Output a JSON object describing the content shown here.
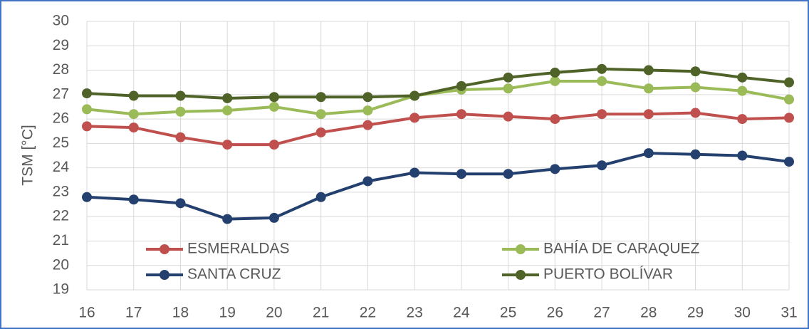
{
  "chart_data": {
    "type": "line",
    "ylabel": "TSM  [°C]",
    "x": [
      16,
      17,
      18,
      19,
      20,
      21,
      22,
      23,
      24,
      25,
      26,
      27,
      28,
      29,
      30,
      31
    ],
    "xlim": [
      16,
      31
    ],
    "xticks": [
      16,
      17,
      18,
      19,
      20,
      21,
      22,
      23,
      24,
      25,
      26,
      27,
      28,
      29,
      30,
      31
    ],
    "ylim": [
      19,
      30
    ],
    "yticks": [
      19,
      20,
      21,
      22,
      23,
      24,
      25,
      26,
      27,
      28,
      29,
      30
    ],
    "grid": true,
    "legend": "bottom",
    "series": [
      {
        "name": "ESMERALDAS",
        "color": "#c0504d",
        "values": [
          25.7,
          25.65,
          25.25,
          24.95,
          24.95,
          25.45,
          25.75,
          26.05,
          26.2,
          26.1,
          26.0,
          26.2,
          26.2,
          26.25,
          26.0,
          26.05
        ]
      },
      {
        "name": "BAHÍA DE CARAQUEZ",
        "color": "#9bbb59",
        "values": [
          26.4,
          26.2,
          26.3,
          26.35,
          26.5,
          26.2,
          26.35,
          26.95,
          27.2,
          27.25,
          27.55,
          27.55,
          27.25,
          27.3,
          27.15,
          26.8
        ]
      },
      {
        "name": "SANTA CRUZ",
        "color": "#24406e",
        "values": [
          22.8,
          22.7,
          22.55,
          21.9,
          21.95,
          22.8,
          23.45,
          23.8,
          23.75,
          23.75,
          23.95,
          24.1,
          24.6,
          24.55,
          24.5,
          24.25
        ]
      },
      {
        "name": "PUERTO BOLÍVAR",
        "color": "#4f6228",
        "values": [
          27.05,
          26.95,
          26.95,
          26.85,
          26.9,
          26.9,
          26.9,
          26.95,
          27.35,
          27.7,
          27.9,
          28.05,
          28.0,
          27.95,
          27.7,
          27.5
        ]
      }
    ]
  }
}
